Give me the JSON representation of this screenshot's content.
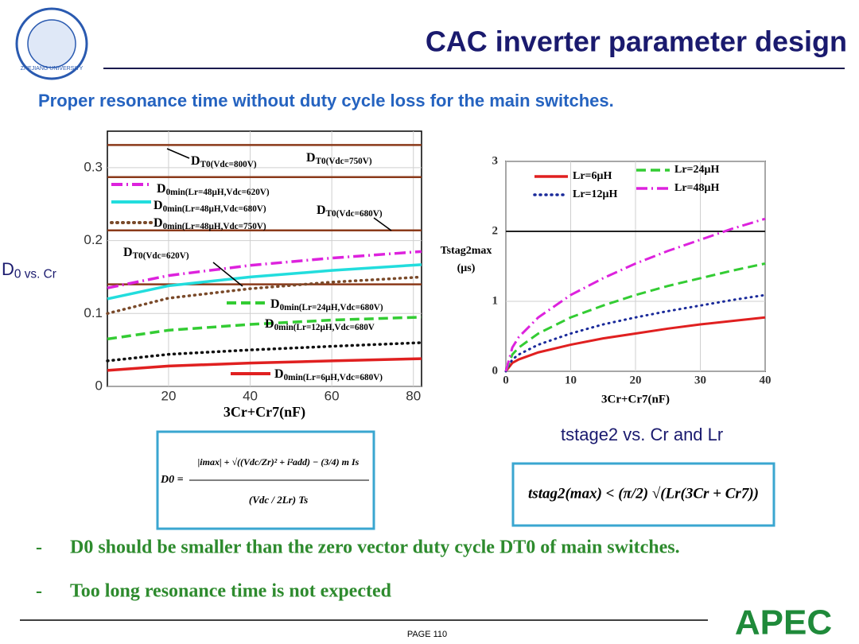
{
  "header": {
    "title": "CAC inverter parameter design",
    "subtitle": "Proper resonance time without duty cycle loss for the main switches.",
    "logo_text": "ZHEJIANG UNIVERSITY"
  },
  "captions": {
    "left": "D0 vs. Cr",
    "right": "tstage2 vs. Cr and Lr"
  },
  "formulas": {
    "left": {
      "lhs": "D0 =",
      "numerator": "|imax| + √((Vdc/Zr)² + i²add) − (3/4) m Is",
      "denominator": "(Vdc / 2Lr) Ts"
    },
    "right": "tstag2(max) < (π/2) √(Lr(3Cr + Cr7))"
  },
  "bullets": [
    "D0 should be smaller than the zero vector duty cycle DT0 of main switches.",
    "Too long resonance time is not expected"
  ],
  "footer": {
    "page": "PAGE 110",
    "brand": "APEC"
  },
  "chart_data": [
    {
      "type": "line",
      "xlabel": "3Cr+Cr7(nF)",
      "x": [
        5,
        20,
        40,
        60,
        82
      ],
      "xlim": [
        5,
        82
      ],
      "ylim": [
        0,
        0.35
      ],
      "xticks": [
        20,
        40,
        60,
        80
      ],
      "yticks": [
        0,
        0.1,
        0.2,
        0.3
      ],
      "grid": true,
      "series": [
        {
          "name": "DT0(Vdc=800V)",
          "color": "#8b3a1a",
          "style": "solid",
          "values": [
            0.331,
            0.331,
            0.331,
            0.331,
            0.331
          ]
        },
        {
          "name": "DT0(Vdc=750V)",
          "color": "#8b3a1a",
          "style": "solid",
          "values": [
            0.287,
            0.287,
            0.287,
            0.287,
            0.287
          ]
        },
        {
          "name": "DT0(Vdc=680V)",
          "color": "#8b3a1a",
          "style": "solid",
          "values": [
            0.214,
            0.214,
            0.214,
            0.214,
            0.214
          ]
        },
        {
          "name": "DT0(Vdc=620V)",
          "color": "#8b3a1a",
          "style": "solid",
          "values": [
            0.14,
            0.14,
            0.14,
            0.14,
            0.14
          ]
        },
        {
          "name": "D0min(Lr=48μH,Vdc=620V)",
          "color": "#dd22dd",
          "style": "dashdot",
          "values": [
            0.135,
            0.152,
            0.166,
            0.176,
            0.185
          ]
        },
        {
          "name": "D0min(Lr=48μH,Vdc=680V)",
          "color": "#22dddd",
          "style": "solid",
          "values": [
            0.12,
            0.138,
            0.15,
            0.159,
            0.167
          ]
        },
        {
          "name": "D0min(Lr=48μH,Vdc=750V)",
          "color": "#7a4a2a",
          "style": "dotted",
          "values": [
            0.1,
            0.121,
            0.134,
            0.143,
            0.15
          ]
        },
        {
          "name": "D0min(Lr=24μH,Vdc=680V)",
          "color": "#33cc33",
          "style": "dashed",
          "values": [
            0.065,
            0.077,
            0.085,
            0.091,
            0.095
          ]
        },
        {
          "name": "D0min(Lr=12μH,Vdc=680V",
          "color": "#111111",
          "style": "dotted",
          "values": [
            0.035,
            0.044,
            0.05,
            0.055,
            0.06
          ]
        },
        {
          "name": "D0min(Lr=6μH,Vdc=680V)",
          "color": "#e02020",
          "style": "solid",
          "values": [
            0.022,
            0.028,
            0.032,
            0.035,
            0.038
          ]
        }
      ]
    },
    {
      "type": "line",
      "xlabel": "3Cr+Cr7(nF)",
      "ylabel": [
        "Tstag2max",
        "(μs)"
      ],
      "x": [
        0,
        1,
        2,
        5,
        10,
        15,
        20,
        25,
        30,
        35,
        40
      ],
      "xlim": [
        0,
        40
      ],
      "ylim": [
        0,
        3
      ],
      "xticks": [
        0,
        10,
        20,
        30,
        40
      ],
      "yticks": [
        0,
        1,
        2,
        3
      ],
      "grid": true,
      "hline": 2,
      "series": [
        {
          "name": "Lr=6μH",
          "color": "#e02020",
          "style": "solid",
          "values": [
            0,
            0.12,
            0.17,
            0.27,
            0.38,
            0.47,
            0.54,
            0.61,
            0.67,
            0.72,
            0.77
          ]
        },
        {
          "name": "Lr=12μH",
          "color": "#1a2a9a",
          "style": "dotted",
          "values": [
            0,
            0.17,
            0.24,
            0.38,
            0.54,
            0.67,
            0.77,
            0.86,
            0.94,
            1.02,
            1.09
          ]
        },
        {
          "name": "Lr=24μH",
          "color": "#33cc33",
          "style": "dashed",
          "values": [
            0,
            0.24,
            0.34,
            0.54,
            0.77,
            0.94,
            1.09,
            1.22,
            1.33,
            1.44,
            1.54
          ]
        },
        {
          "name": "Lr=48μH",
          "color": "#dd22dd",
          "style": "dashdot",
          "values": [
            0,
            0.34,
            0.49,
            0.77,
            1.09,
            1.33,
            1.54,
            1.72,
            1.88,
            2.04,
            2.18
          ]
        }
      ]
    }
  ]
}
